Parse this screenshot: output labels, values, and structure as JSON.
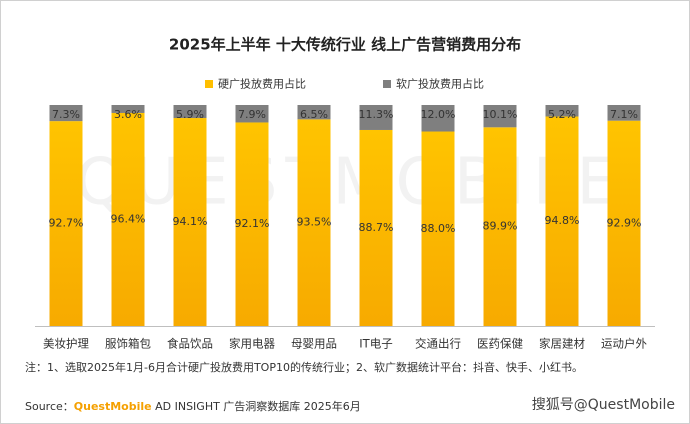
{
  "chart_data": {
    "type": "bar",
    "stacked": true,
    "title": "2025年上半年 十大传统行业 线上广告营销费用分布",
    "categories": [
      "美妆护理",
      "服饰箱包",
      "食品饮品",
      "家用电器",
      "母婴用品",
      "IT电子",
      "交通出行",
      "医药保健",
      "家居建材",
      "运动户外"
    ],
    "series": [
      {
        "name": "硬广投放费用占比",
        "color": "#ffbf00",
        "values": [
          92.7,
          96.4,
          94.1,
          92.1,
          93.5,
          88.7,
          88.0,
          89.9,
          94.8,
          92.9
        ],
        "value_labels": [
          "92.7%",
          "96.4%",
          "94.1%",
          "92.1%",
          "93.5%",
          "88.7%",
          "88.0%",
          "89.9%",
          "94.8%",
          "92.9%"
        ]
      },
      {
        "name": "软广投放费用占比",
        "color": "#7f7f7f",
        "values": [
          7.3,
          3.6,
          5.9,
          7.9,
          6.5,
          11.3,
          12.0,
          10.1,
          5.2,
          7.1
        ],
        "value_labels": [
          "7.3%",
          "3.6%",
          "5.9%",
          "7.9%",
          "6.5%",
          "11.3%",
          "12.0%",
          "10.1%",
          "5.2%",
          "7.1%"
        ]
      }
    ],
    "ylim": [
      0,
      100
    ],
    "note": "注：1、选取2025年1月-6月合计硬广投放费用TOP10的传统行业；2、软广数据统计平台：抖音、快手、小红书。",
    "source_label": "Source：",
    "source_brand": "QuestMobile",
    "source_text": " AD INSIGHT 广告洞察数据库 2025年6月",
    "watermark": "QUESTMOBILE",
    "corner_mark": "搜狐号@QuestMobile"
  }
}
